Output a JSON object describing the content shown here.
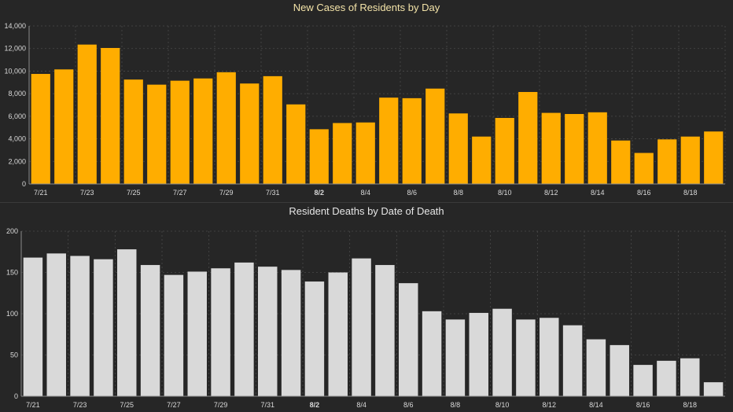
{
  "colors": {
    "background": "#262626",
    "grid": "#4a4a4a",
    "axis": "#8a8a8a",
    "tick_text": "#d9d9d9",
    "cases_bar": "#ffad00",
    "deaths_bar": "#d9d9d9",
    "cases_title": "#f3e3a8",
    "deaths_title": "#e6e6e6"
  },
  "chart_data": [
    {
      "type": "bar",
      "title": "New Cases of Residents by Day",
      "xlabel": "",
      "ylabel": "",
      "ylim": [
        0,
        14000
      ],
      "yticks": [
        "0",
        "2,000",
        "4,000",
        "6,000",
        "8,000",
        "10,000",
        "12,000",
        "14,000"
      ],
      "grid": true,
      "categories": [
        "7/21",
        "7/22",
        "7/23",
        "7/24",
        "7/25",
        "7/26",
        "7/27",
        "7/28",
        "7/29",
        "7/30",
        "7/31",
        "8/1",
        "8/2",
        "8/3",
        "8/4",
        "8/5",
        "8/6",
        "8/7",
        "8/8",
        "8/9",
        "8/10",
        "8/11",
        "8/12",
        "8/13",
        "8/14",
        "8/15",
        "8/16",
        "8/17",
        "8/18",
        "8/19"
      ],
      "xtick_labels": [
        "7/21",
        "",
        "7/23",
        "",
        "7/25",
        "",
        "7/27",
        "",
        "7/29",
        "",
        "7/31",
        "",
        "8/2",
        "",
        "8/4",
        "",
        "8/6",
        "",
        "8/8",
        "",
        "8/10",
        "",
        "8/12",
        "",
        "8/14",
        "",
        "8/16",
        "",
        "8/18",
        ""
      ],
      "values": [
        9750,
        10150,
        12350,
        12050,
        9250,
        8800,
        9150,
        9350,
        9900,
        8900,
        9550,
        7050,
        4850,
        5400,
        5450,
        7650,
        7600,
        8450,
        6250,
        4200,
        5850,
        8150,
        6300,
        6200,
        6350,
        3850,
        2750,
        3950,
        4200,
        4650
      ]
    },
    {
      "type": "bar",
      "title": "Resident Deaths by Date of Death",
      "xlabel": "",
      "ylabel": "",
      "ylim": [
        0,
        200
      ],
      "yticks": [
        "0",
        "50",
        "100",
        "150",
        "200"
      ],
      "grid": true,
      "categories": [
        "7/21",
        "7/22",
        "7/23",
        "7/24",
        "7/25",
        "7/26",
        "7/27",
        "7/28",
        "7/29",
        "7/30",
        "7/31",
        "8/1",
        "8/2",
        "8/3",
        "8/4",
        "8/5",
        "8/6",
        "8/7",
        "8/8",
        "8/9",
        "8/10",
        "8/11",
        "8/12",
        "8/13",
        "8/14",
        "8/15",
        "8/16",
        "8/17",
        "8/18",
        "8/19"
      ],
      "xtick_labels": [
        "7/21",
        "",
        "7/23",
        "",
        "7/25",
        "",
        "7/27",
        "",
        "7/29",
        "",
        "7/31",
        "",
        "8/2",
        "",
        "8/4",
        "",
        "8/6",
        "",
        "8/8",
        "",
        "8/10",
        "",
        "8/12",
        "",
        "8/14",
        "",
        "8/16",
        "",
        "8/18",
        ""
      ],
      "values": [
        168,
        173,
        170,
        166,
        178,
        159,
        147,
        151,
        155,
        162,
        157,
        153,
        139,
        150,
        167,
        159,
        137,
        103,
        93,
        101,
        106,
        93,
        95,
        86,
        69,
        62,
        38,
        43,
        46,
        17
      ]
    }
  ]
}
